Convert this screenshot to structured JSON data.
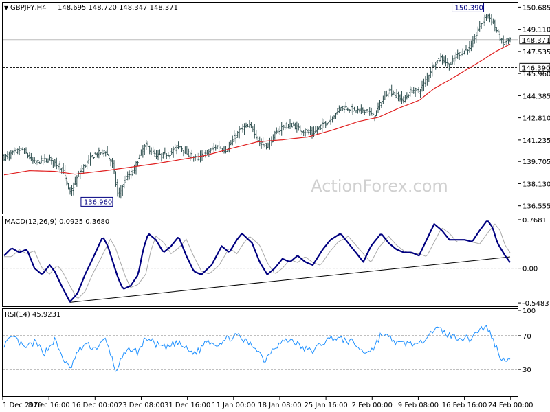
{
  "chart_data": {
    "type": "candlestick-ohlc",
    "symbol": "GBPJPY,H4",
    "ohlc_label": "148.695 148.720 148.347 148.371",
    "watermark": "ActionForex.com",
    "price_axis": {
      "ticks": [
        136.555,
        138.13,
        139.705,
        141.235,
        142.81,
        144.385,
        145.96,
        147.535,
        149.11,
        150.685
      ],
      "tick_labels": [
        "136.555",
        "138.130",
        "139.705",
        "141.235",
        "142.810",
        "144.385",
        "145.960",
        "147.535",
        "149.110",
        "150.685"
      ],
      "ylim": [
        136.1,
        150.9
      ]
    },
    "price_levels": [
      {
        "label": "148.371",
        "value": 148.371,
        "style": "current"
      },
      {
        "label": "146.390",
        "value": 146.39,
        "style": "dashed"
      }
    ],
    "annotations": [
      {
        "label": "150.390",
        "value": 150.39,
        "at_index": 0.945
      },
      {
        "label": "136.960",
        "value": 136.96,
        "at_index": 0.22
      }
    ],
    "time_axis": [
      "1 Dec 2020",
      "8 Dec 16:00",
      "16 Dec 00:00",
      "23 Dec 08:00",
      "31 Dec 16:00",
      "11 Jan 00:00",
      "18 Jan 08:00",
      "25 Jan 16:00",
      "2 Feb 00:00",
      "9 Feb 08:00",
      "16 Feb 16:00",
      "24 Feb 00:00"
    ],
    "close_anchors": [
      [
        0,
        140.0
      ],
      [
        0.035,
        140.6
      ],
      [
        0.06,
        139.6
      ],
      [
        0.09,
        139.9
      ],
      [
        0.115,
        139.2
      ],
      [
        0.13,
        137.4
      ],
      [
        0.15,
        139.0
      ],
      [
        0.175,
        140.1
      ],
      [
        0.2,
        140.5
      ],
      [
        0.215,
        139.4
      ],
      [
        0.225,
        137.2
      ],
      [
        0.24,
        138.5
      ],
      [
        0.255,
        139.0
      ],
      [
        0.27,
        140.3
      ],
      [
        0.28,
        140.9
      ],
      [
        0.3,
        140.1
      ],
      [
        0.33,
        140.3
      ],
      [
        0.345,
        140.9
      ],
      [
        0.36,
        140.3
      ],
      [
        0.38,
        139.9
      ],
      [
        0.4,
        140.3
      ],
      [
        0.42,
        140.8
      ],
      [
        0.44,
        140.5
      ],
      [
        0.455,
        141.4
      ],
      [
        0.47,
        142.1
      ],
      [
        0.49,
        142.2
      ],
      [
        0.505,
        141.0
      ],
      [
        0.52,
        140.8
      ],
      [
        0.535,
        141.6
      ],
      [
        0.55,
        142.2
      ],
      [
        0.57,
        142.3
      ],
      [
        0.59,
        141.9
      ],
      [
        0.61,
        141.7
      ],
      [
        0.625,
        142.2
      ],
      [
        0.645,
        142.7
      ],
      [
        0.665,
        143.6
      ],
      [
        0.68,
        143.5
      ],
      [
        0.7,
        143.3
      ],
      [
        0.715,
        143.4
      ],
      [
        0.73,
        142.9
      ],
      [
        0.745,
        143.9
      ],
      [
        0.76,
        144.8
      ],
      [
        0.775,
        144.4
      ],
      [
        0.79,
        144.1
      ],
      [
        0.805,
        144.8
      ],
      [
        0.82,
        144.7
      ],
      [
        0.835,
        145.6
      ],
      [
        0.85,
        146.7
      ],
      [
        0.865,
        147.1
      ],
      [
        0.88,
        146.5
      ],
      [
        0.895,
        147.3
      ],
      [
        0.91,
        147.6
      ],
      [
        0.925,
        148.0
      ],
      [
        0.94,
        149.4
      ],
      [
        0.955,
        150.2
      ],
      [
        0.965,
        149.6
      ],
      [
        0.975,
        148.9
      ],
      [
        0.985,
        148.1
      ],
      [
        1.0,
        148.37
      ]
    ],
    "ma": {
      "name": "MA",
      "color": "#e02020",
      "anchors": [
        [
          0,
          138.75
        ],
        [
          0.05,
          139.05
        ],
        [
          0.1,
          139.0
        ],
        [
          0.14,
          138.8
        ],
        [
          0.2,
          139.05
        ],
        [
          0.25,
          139.3
        ],
        [
          0.3,
          139.55
        ],
        [
          0.35,
          139.85
        ],
        [
          0.4,
          140.15
        ],
        [
          0.45,
          140.65
        ],
        [
          0.5,
          141.1
        ],
        [
          0.55,
          141.25
        ],
        [
          0.6,
          141.45
        ],
        [
          0.65,
          141.95
        ],
        [
          0.7,
          142.55
        ],
        [
          0.74,
          142.85
        ],
        [
          0.78,
          143.5
        ],
        [
          0.82,
          144.05
        ],
        [
          0.85,
          144.9
        ],
        [
          0.88,
          145.5
        ],
        [
          0.91,
          146.15
        ],
        [
          0.94,
          146.8
        ],
        [
          0.97,
          147.5
        ],
        [
          1.0,
          148.05
        ]
      ]
    },
    "macd": {
      "label": "MACD(12,26,9) 0.0925 0.3680",
      "tick_labels": [
        "0.7681",
        "0.00",
        "-0.5483"
      ],
      "ticks": [
        0.7681,
        0.0,
        -0.5483
      ],
      "ylim": [
        -0.58,
        0.8
      ],
      "zero_line": 0.0,
      "macd_color": "#000080",
      "signal_color": "#a9a9a9",
      "macd_anchors": [
        [
          0,
          0.2
        ],
        [
          0.015,
          0.32
        ],
        [
          0.03,
          0.25
        ],
        [
          0.045,
          0.3
        ],
        [
          0.06,
          0.0
        ],
        [
          0.075,
          -0.1
        ],
        [
          0.09,
          0.05
        ],
        [
          0.1,
          -0.05
        ],
        [
          0.115,
          -0.3
        ],
        [
          0.13,
          -0.53
        ],
        [
          0.145,
          -0.4
        ],
        [
          0.16,
          -0.1
        ],
        [
          0.175,
          0.15
        ],
        [
          0.195,
          0.5
        ],
        [
          0.205,
          0.35
        ],
        [
          0.215,
          0.1
        ],
        [
          0.225,
          -0.15
        ],
        [
          0.235,
          -0.33
        ],
        [
          0.25,
          -0.28
        ],
        [
          0.265,
          -0.1
        ],
        [
          0.275,
          0.3
        ],
        [
          0.285,
          0.55
        ],
        [
          0.3,
          0.45
        ],
        [
          0.315,
          0.25
        ],
        [
          0.33,
          0.35
        ],
        [
          0.345,
          0.5
        ],
        [
          0.36,
          0.2
        ],
        [
          0.375,
          -0.05
        ],
        [
          0.39,
          -0.1
        ],
        [
          0.41,
          0.05
        ],
        [
          0.43,
          0.35
        ],
        [
          0.445,
          0.25
        ],
        [
          0.46,
          0.45
        ],
        [
          0.47,
          0.55
        ],
        [
          0.49,
          0.4
        ],
        [
          0.505,
          0.1
        ],
        [
          0.52,
          -0.1
        ],
        [
          0.535,
          0.0
        ],
        [
          0.55,
          0.15
        ],
        [
          0.565,
          0.1
        ],
        [
          0.58,
          0.2
        ],
        [
          0.595,
          0.1
        ],
        [
          0.61,
          0.05
        ],
        [
          0.63,
          0.3
        ],
        [
          0.645,
          0.45
        ],
        [
          0.665,
          0.55
        ],
        [
          0.68,
          0.4
        ],
        [
          0.695,
          0.25
        ],
        [
          0.71,
          0.1
        ],
        [
          0.725,
          0.35
        ],
        [
          0.745,
          0.55
        ],
        [
          0.76,
          0.4
        ],
        [
          0.775,
          0.3
        ],
        [
          0.79,
          0.25
        ],
        [
          0.805,
          0.25
        ],
        [
          0.82,
          0.2
        ],
        [
          0.835,
          0.45
        ],
        [
          0.85,
          0.7
        ],
        [
          0.865,
          0.6
        ],
        [
          0.88,
          0.45
        ],
        [
          0.895,
          0.45
        ],
        [
          0.91,
          0.45
        ],
        [
          0.925,
          0.42
        ],
        [
          0.94,
          0.6
        ],
        [
          0.955,
          0.76
        ],
        [
          0.965,
          0.65
        ],
        [
          0.975,
          0.4
        ],
        [
          0.99,
          0.2
        ],
        [
          1.0,
          0.0925
        ]
      ],
      "signal_lag": 0.015,
      "trendline": [
        [
          0.13,
          -0.54
        ],
        [
          1.0,
          0.18
        ]
      ]
    },
    "rsi": {
      "label": "RSI(14) 45.9231",
      "tick_labels": [
        "100",
        "70",
        "30"
      ],
      "ticks": [
        100,
        70,
        30
      ],
      "ylim": [
        0,
        100
      ],
      "color": "#1e90ff",
      "anchors": [
        [
          0,
          60
        ],
        [
          0.02,
          68
        ],
        [
          0.04,
          55
        ],
        [
          0.06,
          62
        ],
        [
          0.08,
          50
        ],
        [
          0.1,
          65
        ],
        [
          0.115,
          45
        ],
        [
          0.13,
          30
        ],
        [
          0.145,
          50
        ],
        [
          0.16,
          60
        ],
        [
          0.18,
          55
        ],
        [
          0.2,
          65
        ],
        [
          0.21,
          50
        ],
        [
          0.22,
          28
        ],
        [
          0.235,
          45
        ],
        [
          0.25,
          55
        ],
        [
          0.265,
          50
        ],
        [
          0.28,
          68
        ],
        [
          0.3,
          60
        ],
        [
          0.32,
          55
        ],
        [
          0.34,
          62
        ],
        [
          0.355,
          57
        ],
        [
          0.37,
          50
        ],
        [
          0.385,
          52
        ],
        [
          0.4,
          65
        ],
        [
          0.42,
          60
        ],
        [
          0.44,
          66
        ],
        [
          0.46,
          70
        ],
        [
          0.48,
          62
        ],
        [
          0.5,
          55
        ],
        [
          0.515,
          40
        ],
        [
          0.53,
          55
        ],
        [
          0.55,
          63
        ],
        [
          0.57,
          65
        ],
        [
          0.59,
          55
        ],
        [
          0.61,
          52
        ],
        [
          0.63,
          62
        ],
        [
          0.65,
          68
        ],
        [
          0.67,
          65
        ],
        [
          0.69,
          62
        ],
        [
          0.71,
          50
        ],
        [
          0.73,
          55
        ],
        [
          0.745,
          72
        ],
        [
          0.76,
          68
        ],
        [
          0.78,
          60
        ],
        [
          0.8,
          62
        ],
        [
          0.82,
          58
        ],
        [
          0.84,
          75
        ],
        [
          0.86,
          78
        ],
        [
          0.88,
          70
        ],
        [
          0.9,
          68
        ],
        [
          0.92,
          66
        ],
        [
          0.94,
          78
        ],
        [
          0.955,
          80
        ],
        [
          0.97,
          60
        ],
        [
          0.985,
          40
        ],
        [
          1.0,
          45.9
        ]
      ]
    }
  }
}
